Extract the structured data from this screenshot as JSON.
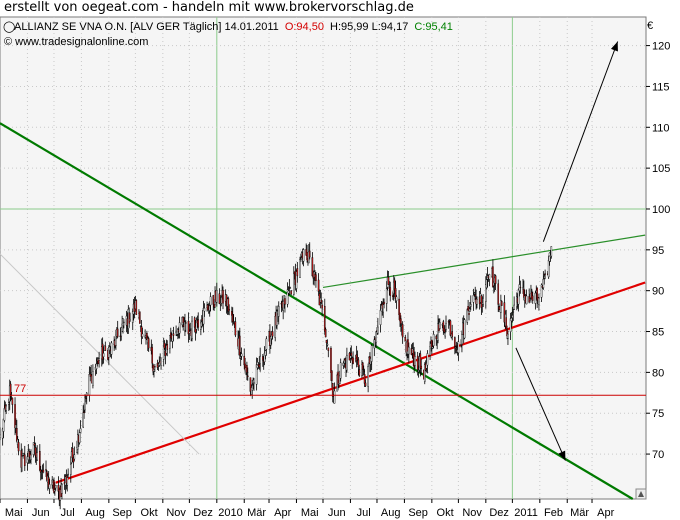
{
  "banner": "erstellt von oegeat.com - handeln mit www.brokervorschlag.de",
  "header": {
    "instrument": "ALLIANZ SE VNA O.N. [ALV GER  Täglich] 14.01.2011",
    "open": "O:94,50",
    "high": "H:95,99",
    "low": "L:94,17",
    "close": "C:95,41",
    "colors": {
      "open": "#d40000",
      "close": "#008000",
      "text": "#000000"
    }
  },
  "watermark": "© www.tradesignalonline.com",
  "currency": "€",
  "chart_data": {
    "type": "candlestick",
    "instrument": "ALLIANZ SE VNA O.N.",
    "interval": "Täglich",
    "x_tick_labels": [
      "Mai",
      "Jun",
      "Jul",
      "Aug",
      "Sep",
      "Okt",
      "Nov",
      "Dez",
      "2010",
      "Mär",
      "Apr",
      "Mai",
      "Jun",
      "Jul",
      "Aug",
      "Sep",
      "Okt",
      "Nov",
      "Dez",
      "2011",
      "Feb",
      "Mär",
      "Apr"
    ],
    "y_ticks": [
      70,
      75,
      80,
      85,
      90,
      95,
      100,
      105,
      110,
      115,
      120
    ],
    "ylim": [
      64.5,
      123.5
    ],
    "grid": true,
    "horizontal_line": {
      "label": "77",
      "value": 77.2,
      "color": "#cc0000"
    },
    "price_path": [
      [
        "2009-05-01",
        72
      ],
      [
        "2009-05-12",
        77.5
      ],
      [
        "2009-05-25",
        69
      ],
      [
        "2009-06-08",
        70.5
      ],
      [
        "2009-06-22",
        67
      ],
      [
        "2009-07-06",
        65
      ],
      [
        "2009-07-15",
        67
      ],
      [
        "2009-07-28",
        72
      ],
      [
        "2009-08-10",
        79
      ],
      [
        "2009-08-22",
        82
      ],
      [
        "2009-09-05",
        83
      ],
      [
        "2009-09-18",
        86
      ],
      [
        "2009-10-01",
        88
      ],
      [
        "2009-10-12",
        84
      ],
      [
        "2009-10-25",
        80
      ],
      [
        "2009-11-08",
        84
      ],
      [
        "2009-11-20",
        86
      ],
      [
        "2009-12-01",
        85
      ],
      [
        "2009-12-15",
        87
      ],
      [
        "2009-12-30",
        89
      ],
      [
        "2010-01-11",
        89
      ],
      [
        "2010-01-25",
        84
      ],
      [
        "2010-02-08",
        78
      ],
      [
        "2010-02-22",
        82
      ],
      [
        "2010-03-08",
        86
      ],
      [
        "2010-03-20",
        89
      ],
      [
        "2010-04-01",
        92
      ],
      [
        "2010-04-12",
        95
      ],
      [
        "2010-04-25",
        90
      ],
      [
        "2010-05-06",
        84
      ],
      [
        "2010-05-13",
        77
      ],
      [
        "2010-05-22",
        81
      ],
      [
        "2010-06-05",
        82
      ],
      [
        "2010-06-18",
        79
      ],
      [
        "2010-07-01",
        85
      ],
      [
        "2010-07-12",
        91
      ],
      [
        "2010-07-20",
        90
      ],
      [
        "2010-07-30",
        84
      ],
      [
        "2010-08-10",
        82
      ],
      [
        "2010-08-24",
        80
      ],
      [
        "2010-09-05",
        85
      ],
      [
        "2010-09-20",
        86
      ],
      [
        "2010-10-01",
        83
      ],
      [
        "2010-10-15",
        89
      ],
      [
        "2010-10-28",
        89
      ],
      [
        "2010-11-05",
        93
      ],
      [
        "2010-11-15",
        89
      ],
      [
        "2010-11-26",
        85
      ],
      [
        "2010-12-08",
        90
      ],
      [
        "2010-12-20",
        89
      ],
      [
        "2010-12-30",
        89
      ],
      [
        "2011-01-07",
        91
      ],
      [
        "2011-01-14",
        95.4
      ]
    ],
    "trendlines": [
      {
        "name": "green-downtrend",
        "color": "#007a00",
        "width": 2.2,
        "start": [
          "2009-05-01",
          110.5
        ],
        "end": [
          "2011-04-16",
          64.5
        ]
      },
      {
        "name": "red-uptrend",
        "color": "#e00000",
        "width": 2.2,
        "start": [
          "2009-07-03",
          66.5
        ],
        "end": [
          "2011-04-30",
          91.0
        ]
      },
      {
        "name": "green-resistance",
        "color": "#2a8f2a",
        "width": 1.2,
        "start": [
          "2010-05-01",
          90.4
        ],
        "end": [
          "2011-04-30",
          96.8
        ]
      },
      {
        "name": "grey-diagonal",
        "color": "#c8c8c8",
        "width": 1,
        "start": [
          "2009-05-01",
          94.5
        ],
        "end": [
          "2009-12-12",
          70.0
        ]
      }
    ],
    "arrows": [
      {
        "name": "arrow-up",
        "start": [
          "2011-01-05",
          96
        ],
        "end": [
          "2011-03-30",
          120.5
        ]
      },
      {
        "name": "arrow-down",
        "start": [
          "2010-12-05",
          83
        ],
        "end": [
          "2011-01-30",
          69.2
        ]
      }
    ]
  }
}
